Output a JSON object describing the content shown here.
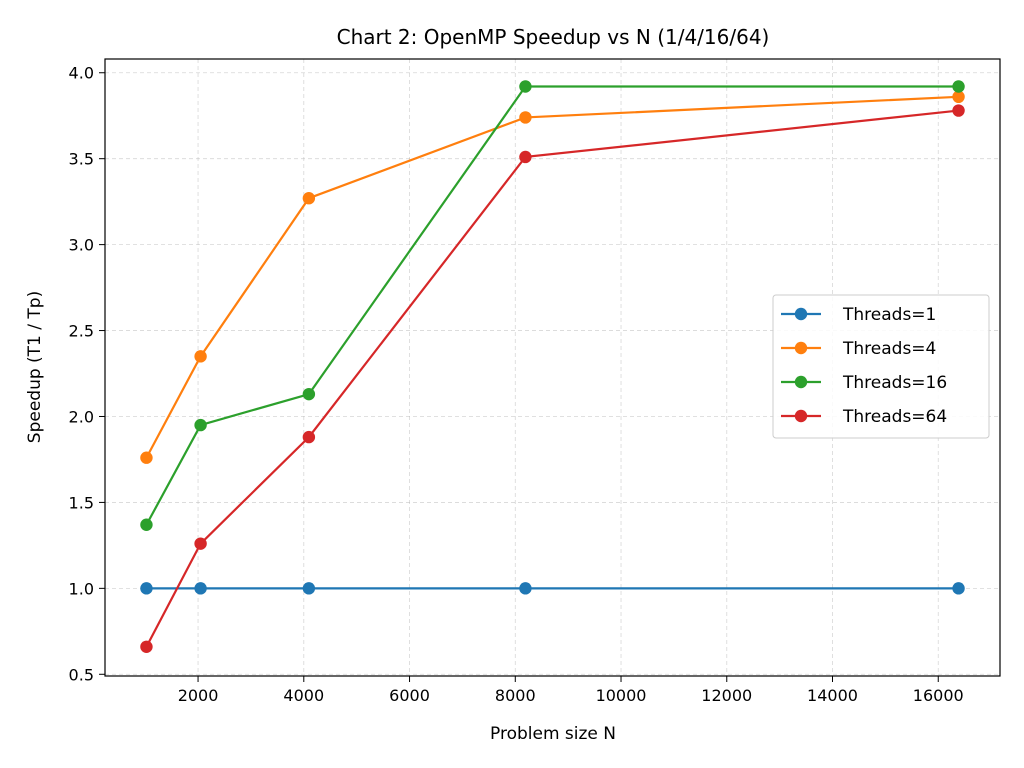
{
  "chart_data": {
    "type": "line",
    "title": "Chart 2: OpenMP Speedup vs N (1/4/16/64)",
    "xlabel": "Problem size N",
    "ylabel": "Speedup (T1 / Tp)",
    "x": [
      1024,
      2048,
      4096,
      8192,
      16384
    ],
    "xlim": [
      240,
      17168
    ],
    "ylim": [
      0.49,
      4.08
    ],
    "xticks": [
      2000,
      4000,
      6000,
      8000,
      10000,
      12000,
      14000,
      16000
    ],
    "yticks": [
      0.5,
      1.0,
      1.5,
      2.0,
      2.5,
      3.0,
      3.5,
      4.0
    ],
    "xtick_labels": [
      "2000",
      "4000",
      "6000",
      "8000",
      "10000",
      "12000",
      "14000",
      "16000"
    ],
    "ytick_labels": [
      "0.5",
      "1.0",
      "1.5",
      "2.0",
      "2.5",
      "3.0",
      "3.5",
      "4.0"
    ],
    "grid": true,
    "legend_position": "center-right",
    "series": [
      {
        "name": "Threads=1",
        "color": "#1f77b4",
        "values": [
          1.0,
          1.0,
          1.0,
          1.0,
          1.0
        ]
      },
      {
        "name": "Threads=4",
        "color": "#ff7f0e",
        "values": [
          1.76,
          2.35,
          3.27,
          3.74,
          3.86
        ]
      },
      {
        "name": "Threads=16",
        "color": "#2ca02c",
        "values": [
          1.37,
          1.95,
          2.13,
          3.92,
          3.92
        ]
      },
      {
        "name": "Threads=64",
        "color": "#d62728",
        "values": [
          0.66,
          1.26,
          1.88,
          3.51,
          3.78
        ]
      }
    ]
  }
}
